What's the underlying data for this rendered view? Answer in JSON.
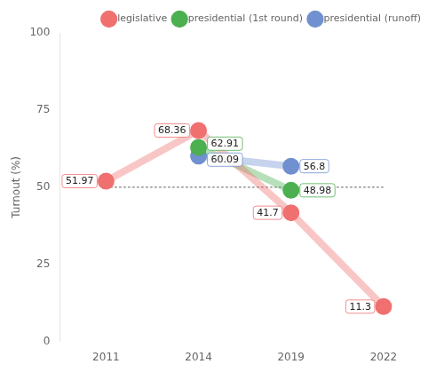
{
  "chart_data": {
    "type": "line",
    "categories": [
      "2011",
      "2014",
      "2019",
      "2022"
    ],
    "series": [
      {
        "name": "legislative",
        "color": "#f07070",
        "marker": "circle",
        "values": [
          51.97,
          68.36,
          41.7,
          11.3
        ]
      },
      {
        "name": "presidential (1st round)",
        "color": "#4caf50",
        "marker": "circle",
        "values": [
          null,
          62.91,
          48.98,
          null
        ]
      },
      {
        "name": "presidential (runoff)",
        "color": "#7090d0",
        "marker": "circle",
        "values": [
          null,
          60.09,
          56.8,
          null
        ]
      },
      {
        "color": "#808080",
        "marker": "none",
        "line_style": "dotted",
        "values": [
          50,
          50,
          50,
          50
        ]
      }
    ],
    "ylabel": "Turnout (%)",
    "ylim": [
      0,
      100
    ],
    "yticks": [
      0,
      25,
      50,
      75,
      100
    ],
    "grid": false,
    "legend": "top",
    "data_labels": true
  }
}
